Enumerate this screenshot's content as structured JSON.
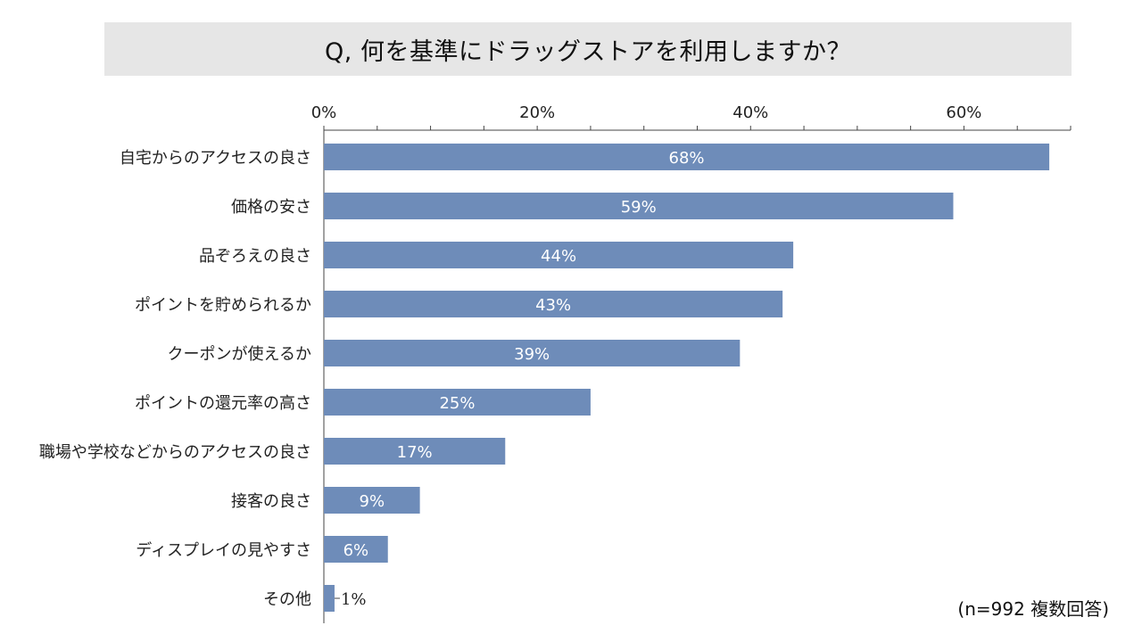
{
  "title": "Q, 何を基準にドラッグストアを利用しますか？",
  "note": "(n=992 複数回答)",
  "colors": {
    "bar": "#6e8cb9",
    "title_bg": "#e6e6e6",
    "axis": "#444444"
  },
  "chart_data": {
    "type": "bar",
    "orientation": "horizontal",
    "categories": [
      "自宅からのアクセスの良さ",
      "価格の安さ",
      "品ぞろえの良さ",
      "ポイントを貯められるか",
      "クーポンが使えるか",
      "ポイントの還元率の高さ",
      "職場や学校などからのアクセスの良さ",
      "接客の良さ",
      "ディスプレイの見やすさ",
      "その他"
    ],
    "values": [
      68,
      59,
      44,
      43,
      39,
      25,
      17,
      9,
      6,
      1
    ],
    "data_labels": [
      "68%",
      "59%",
      "44%",
      "43%",
      "39%",
      "25%",
      "17%",
      "9%",
      "6%",
      "1%"
    ],
    "xlim": [
      0,
      70
    ],
    "x_ticks": [
      0,
      20,
      40,
      60
    ],
    "x_tick_labels": [
      "0%",
      "20%",
      "40%",
      "60%"
    ],
    "x_minor_step": 5,
    "axis_position": "top",
    "grid": false,
    "legend": "none"
  }
}
